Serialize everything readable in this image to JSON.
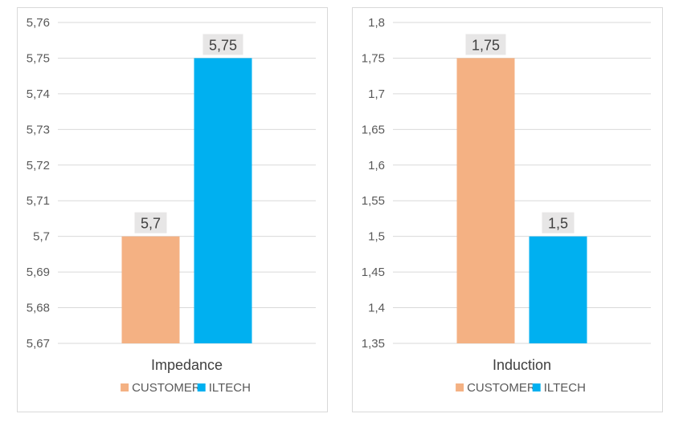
{
  "colors": {
    "customer": "#f4b183",
    "iltech": "#00b0f0",
    "grid": "#d9d9d9",
    "label_bg": "#e7e6e6"
  },
  "chart_data": [
    {
      "type": "bar",
      "categories": [
        "Impedance"
      ],
      "series": [
        {
          "name": "CUSTOMER",
          "values": [
            5.7
          ],
          "value_label": "5,7"
        },
        {
          "name": "ILTECH",
          "values": [
            5.75
          ],
          "value_label": "5,75"
        }
      ],
      "ylim": [
        5.67,
        5.76
      ],
      "yticks": [
        5.67,
        5.68,
        5.69,
        5.7,
        5.71,
        5.72,
        5.73,
        5.74,
        5.75,
        5.76
      ],
      "ytick_labels": [
        "5,67",
        "5,68",
        "5,69",
        "5,7",
        "5,71",
        "5,72",
        "5,73",
        "5,74",
        "5,75",
        "5,76"
      ],
      "grid": true,
      "legend": "bottom"
    },
    {
      "type": "bar",
      "categories": [
        "Induction"
      ],
      "series": [
        {
          "name": "CUSTOMER",
          "values": [
            1.75
          ],
          "value_label": "1,75"
        },
        {
          "name": "ILTECH",
          "values": [
            1.5
          ],
          "value_label": "1,5"
        }
      ],
      "ylim": [
        1.35,
        1.8
      ],
      "yticks": [
        1.35,
        1.4,
        1.45,
        1.5,
        1.55,
        1.6,
        1.65,
        1.7,
        1.75,
        1.8
      ],
      "ytick_labels": [
        "1,35",
        "1,4",
        "1,45",
        "1,5",
        "1,55",
        "1,6",
        "1,65",
        "1,7",
        "1,75",
        "1,8"
      ],
      "grid": true,
      "legend": "bottom"
    }
  ]
}
